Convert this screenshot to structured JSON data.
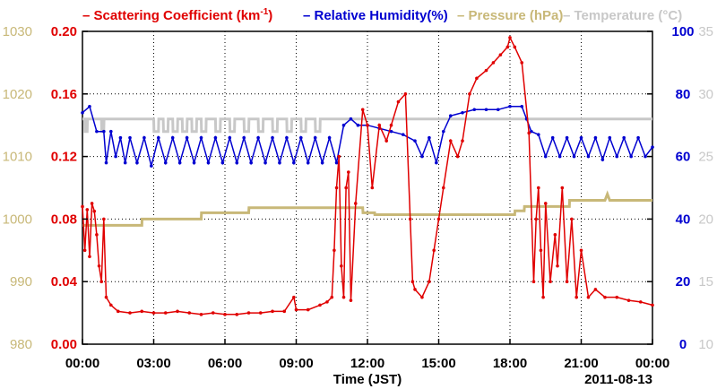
{
  "colors": {
    "scattering": "#e00000",
    "humidity": "#0000d0",
    "pressure": "#c8b878",
    "temperature": "#c8c8c8"
  },
  "legend": {
    "scattering": "– Scattering Coefficient (km",
    "scattering_sup": "-1",
    "scattering_close": ")",
    "humidity": "– Relative Humidity(%)",
    "pressure": "– Pressure (hPa)",
    "temperature": "– Temperature (°C)"
  },
  "chart_data": {
    "type": "line",
    "xlabel": "Time (JST)",
    "date_label": "2011-08-13",
    "x_ticks": [
      "00:00",
      "03:00",
      "06:00",
      "09:00",
      "12:00",
      "15:00",
      "18:00",
      "21:00",
      "00:00"
    ],
    "xlim_hours": [
      0,
      24
    ],
    "axes": {
      "pressure": {
        "ticks": [
          "980",
          "990",
          "1000",
          "1010",
          "1020",
          "1030"
        ],
        "ylim": [
          980,
          1030
        ]
      },
      "scattering": {
        "ticks": [
          "0.00",
          "0.04",
          "0.08",
          "0.12",
          "0.16",
          "0.20"
        ],
        "ylim": [
          0,
          0.2
        ]
      },
      "humidity": {
        "ticks": [
          "0",
          "20",
          "40",
          "60",
          "80",
          "100"
        ],
        "ylim": [
          0,
          100
        ]
      },
      "temperature": {
        "ticks": [
          "10",
          "15",
          "20",
          "25",
          "30",
          "35"
        ],
        "ylim": [
          10,
          35
        ]
      }
    },
    "grid": true,
    "series": [
      {
        "name": "Scattering Coefficient (km-1)",
        "axis": "scattering",
        "x": [
          0,
          0.1,
          0.2,
          0.3,
          0.4,
          0.5,
          0.6,
          0.7,
          0.8,
          0.9,
          1.0,
          1.2,
          1.5,
          2,
          2.5,
          3,
          3.5,
          4,
          4.5,
          5,
          5.5,
          6,
          6.5,
          7,
          7.5,
          8,
          8.5,
          8.9,
          9,
          9.5,
          10,
          10.3,
          10.5,
          10.6,
          10.7,
          10.8,
          10.9,
          11.0,
          11.1,
          11.2,
          11.3,
          11.5,
          11.8,
          12,
          12.2,
          12.5,
          12.8,
          13,
          13.3,
          13.6,
          13.8,
          13.9,
          14,
          14.3,
          14.6,
          14.8,
          15,
          15.2,
          15.5,
          15.8,
          16,
          16.3,
          16.6,
          17,
          17.3,
          17.6,
          17.9,
          18,
          18.2,
          18.5,
          18.8,
          19,
          19.1,
          19.2,
          19.3,
          19.4,
          19.5,
          19.7,
          19.9,
          20,
          20.2,
          20.4,
          20.6,
          20.8,
          21,
          21.3,
          21.6,
          22,
          22.5,
          23,
          23.5,
          24
        ],
        "y": [
          0.088,
          0.06,
          0.086,
          0.056,
          0.09,
          0.085,
          0.07,
          0.05,
          0.04,
          0.08,
          0.03,
          0.025,
          0.021,
          0.02,
          0.021,
          0.02,
          0.02,
          0.021,
          0.02,
          0.019,
          0.02,
          0.019,
          0.019,
          0.02,
          0.02,
          0.021,
          0.021,
          0.03,
          0.022,
          0.022,
          0.025,
          0.027,
          0.03,
          0.06,
          0.1,
          0.12,
          0.05,
          0.03,
          0.1,
          0.11,
          0.028,
          0.09,
          0.15,
          0.14,
          0.1,
          0.14,
          0.13,
          0.14,
          0.155,
          0.16,
          0.08,
          0.04,
          0.035,
          0.03,
          0.04,
          0.06,
          0.08,
          0.1,
          0.13,
          0.12,
          0.13,
          0.16,
          0.17,
          0.175,
          0.18,
          0.185,
          0.19,
          0.196,
          0.19,
          0.18,
          0.135,
          0.04,
          0.08,
          0.1,
          0.06,
          0.03,
          0.09,
          0.04,
          0.07,
          0.05,
          0.1,
          0.04,
          0.08,
          0.03,
          0.06,
          0.03,
          0.035,
          0.03,
          0.03,
          0.028,
          0.027,
          0.025
        ]
      },
      {
        "name": "Relative Humidity(%)",
        "axis": "humidity",
        "x": [
          0,
          0.3,
          0.6,
          0.9,
          1.0,
          1.2,
          1.4,
          1.6,
          1.8,
          2,
          2.3,
          2.6,
          2.9,
          3.2,
          3.5,
          3.8,
          4.1,
          4.4,
          4.7,
          5,
          5.3,
          5.6,
          5.9,
          6.2,
          6.5,
          6.8,
          7.1,
          7.4,
          7.7,
          8,
          8.3,
          8.6,
          8.9,
          9.2,
          9.5,
          9.8,
          10.1,
          10.4,
          10.7,
          11,
          11.3,
          11.6,
          12,
          12.5,
          13,
          13.5,
          14,
          14.3,
          14.6,
          14.9,
          15.2,
          15.5,
          16,
          16.5,
          17,
          17.5,
          18,
          18.5,
          18.7,
          18.9,
          19.2,
          19.5,
          19.8,
          20.1,
          20.4,
          20.7,
          21,
          21.3,
          21.6,
          21.9,
          22.2,
          22.5,
          22.8,
          23.1,
          23.4,
          23.7,
          24
        ],
        "y": [
          74,
          76,
          68,
          68,
          58,
          68,
          60,
          66,
          58,
          66,
          58,
          66,
          57,
          66,
          58,
          66,
          58,
          66,
          58,
          66,
          58,
          66,
          58,
          66,
          58,
          66,
          58,
          66,
          58,
          66,
          58,
          66,
          58,
          66,
          58,
          66,
          58,
          66,
          58,
          70,
          72,
          70,
          70,
          69,
          68,
          67,
          65,
          60,
          66,
          58,
          68,
          73,
          74,
          75,
          75,
          75,
          76,
          76,
          72,
          68,
          67,
          60,
          66,
          60,
          66,
          60,
          66,
          60,
          66,
          59,
          66,
          60,
          66,
          60,
          66,
          60,
          63
        ]
      },
      {
        "name": "Pressure (hPa)",
        "axis": "pressure",
        "x": [
          0,
          1.2,
          1.21,
          2.5,
          2.51,
          5,
          5.01,
          7,
          7.01,
          11.8,
          11.81,
          12.3,
          12.31,
          18.2,
          18.21,
          18.6,
          18.61,
          20.5,
          20.51,
          22,
          22.1,
          22.2,
          24
        ],
        "y": [
          999,
          999,
          999,
          999,
          1000,
          1000,
          1001,
          1001,
          1001.8,
          1001.8,
          1001,
          1001,
          1000.7,
          1000.7,
          1001.3,
          1001.3,
          1002,
          1002,
          1003,
          1003,
          1004,
          1003,
          1003
        ]
      },
      {
        "name": "Temperature (°C)",
        "axis": "temperature",
        "x": [
          0,
          0.1,
          0.11,
          0.2,
          0.21,
          0.8,
          0.81,
          0.9,
          0.91,
          3,
          3.01,
          3.2,
          3.21,
          3.4,
          3.41,
          3.6,
          3.61,
          3.8,
          3.81,
          4,
          4.01,
          4.2,
          4.21,
          4.4,
          4.41,
          4.6,
          4.61,
          4.8,
          4.81,
          5,
          5.01,
          5.2,
          5.21,
          5.6,
          5.61,
          5.8,
          5.81,
          6.2,
          6.21,
          6.4,
          6.41,
          6.8,
          6.81,
          7,
          7.01,
          7.4,
          7.41,
          7.6,
          7.61,
          8,
          8.01,
          8.2,
          8.21,
          8.6,
          8.61,
          8.8,
          8.81,
          9.2,
          9.21,
          9.4,
          9.41,
          9.8,
          9.81,
          10,
          10.01,
          24
        ],
        "y": [
          28,
          28,
          27,
          27,
          28,
          28,
          27,
          27,
          28,
          28,
          27,
          27,
          28,
          28,
          27,
          27,
          28,
          28,
          27,
          27,
          28,
          28,
          27,
          27,
          28,
          28,
          27,
          27,
          28,
          28,
          27,
          27,
          28,
          28,
          27,
          27,
          28,
          28,
          27,
          27,
          28,
          28,
          27,
          27,
          28,
          28,
          27,
          27,
          28,
          28,
          27,
          27,
          28,
          28,
          27,
          27,
          28,
          28,
          27,
          27,
          28,
          28,
          27,
          27,
          28,
          28
        ]
      }
    ]
  }
}
